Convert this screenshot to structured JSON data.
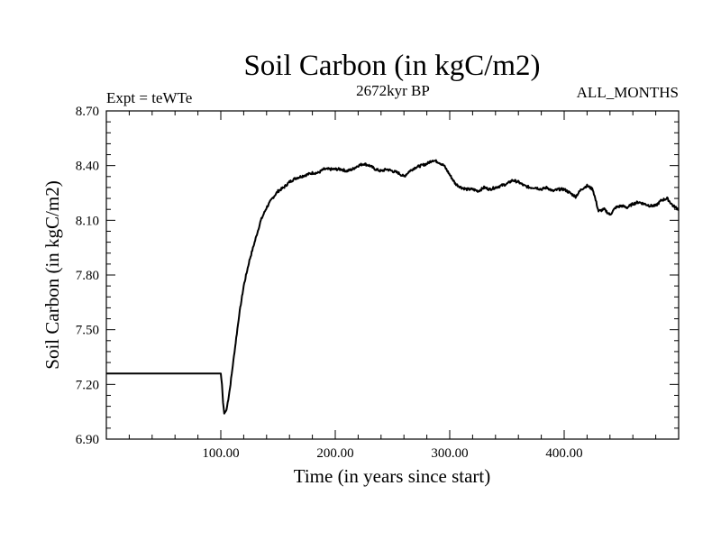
{
  "chart_data": {
    "type": "line",
    "title": "Soil Carbon (in kgC/m2)",
    "subtitle_left": "Expt = teWTe",
    "subtitle_center": "2672kyr BP",
    "subtitle_right": "ALL_MONTHS",
    "xlabel": "Time (in years since start)",
    "ylabel": "Soil Carbon (in kgC/m2)",
    "xlim": [
      0,
      500
    ],
    "ylim": [
      6.9,
      8.7
    ],
    "x_ticks": [
      100,
      200,
      300,
      400
    ],
    "x_tick_labels": [
      "100.00",
      "200.00",
      "300.00",
      "400.00"
    ],
    "y_ticks": [
      6.9,
      7.2,
      7.5,
      7.8,
      8.1,
      8.4,
      8.7
    ],
    "y_tick_labels": [
      "6.90",
      "7.20",
      "7.50",
      "7.80",
      "8.10",
      "8.40",
      "8.70"
    ],
    "line_color": "#000000",
    "series": [
      {
        "name": "Soil Carbon",
        "x": [
          0,
          100,
          101,
          102,
          103,
          105,
          108,
          112,
          116,
          120,
          125,
          130,
          135,
          140,
          145,
          150,
          155,
          160,
          165,
          170,
          175,
          180,
          185,
          190,
          195,
          200,
          205,
          210,
          215,
          220,
          225,
          230,
          235,
          240,
          245,
          250,
          255,
          260,
          265,
          270,
          275,
          280,
          285,
          290,
          295,
          300,
          305,
          310,
          315,
          320,
          325,
          330,
          335,
          340,
          345,
          350,
          355,
          360,
          365,
          370,
          375,
          380,
          385,
          390,
          395,
          400,
          405,
          410,
          415,
          420,
          425,
          430,
          435,
          440,
          445,
          450,
          455,
          460,
          465,
          470,
          475,
          480,
          485,
          490,
          495,
          500
        ],
        "values": [
          7.26,
          7.26,
          7.2,
          7.1,
          7.04,
          7.06,
          7.18,
          7.38,
          7.58,
          7.74,
          7.88,
          7.99,
          8.1,
          8.17,
          8.22,
          8.26,
          8.28,
          8.31,
          8.33,
          8.34,
          8.35,
          8.36,
          8.36,
          8.38,
          8.38,
          8.38,
          8.38,
          8.37,
          8.38,
          8.4,
          8.41,
          8.4,
          8.38,
          8.37,
          8.38,
          8.37,
          8.36,
          8.34,
          8.37,
          8.39,
          8.4,
          8.41,
          8.43,
          8.42,
          8.4,
          8.35,
          8.3,
          8.28,
          8.27,
          8.27,
          8.26,
          8.28,
          8.27,
          8.28,
          8.29,
          8.3,
          8.32,
          8.31,
          8.29,
          8.28,
          8.28,
          8.27,
          8.28,
          8.26,
          8.27,
          8.27,
          8.25,
          8.23,
          8.27,
          8.29,
          8.27,
          8.15,
          8.16,
          8.13,
          8.17,
          8.18,
          8.17,
          8.19,
          8.2,
          8.19,
          8.18,
          8.18,
          8.21,
          8.22,
          8.18,
          8.16
        ]
      }
    ]
  }
}
